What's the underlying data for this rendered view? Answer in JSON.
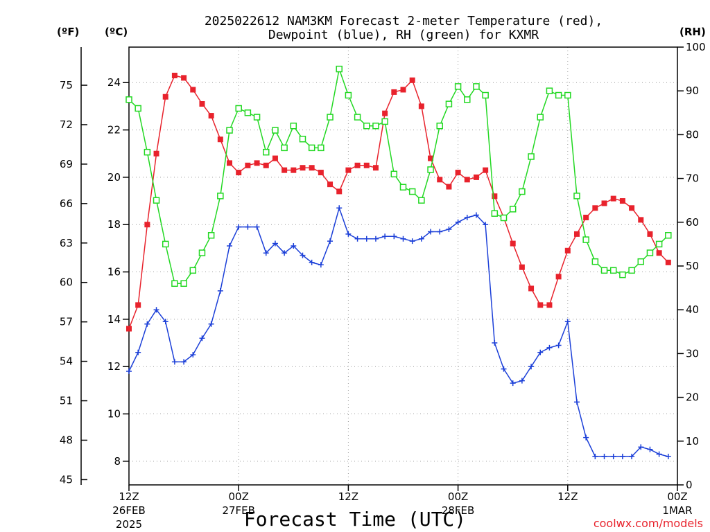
{
  "chart_data": {
    "type": "line",
    "title_line1": "2025022612 NAM3KM Forecast 2-meter Temperature (red),",
    "title_line2": "Dewpoint (blue), RH (green) for KXMR",
    "xlabel": "Forecast Time (UTC)",
    "credit": "coolwx.com/models",
    "units": {
      "fahrenheit": "(ºF)",
      "celsius": "(ºC)",
      "rh": "(RH)"
    },
    "x_hours": {
      "start": 0,
      "end": 60
    },
    "x_ticks": [
      {
        "hour": 0,
        "line1": "12Z",
        "line2": "26FEB",
        "line3": "2025"
      },
      {
        "hour": 12,
        "line1": "00Z",
        "line2": "27FEB",
        "line3": ""
      },
      {
        "hour": 24,
        "line1": "12Z",
        "line2": "",
        "line3": ""
      },
      {
        "hour": 36,
        "line1": "00Z",
        "line2": "28FEB",
        "line3": ""
      },
      {
        "hour": 48,
        "line1": "12Z",
        "line2": "",
        "line3": ""
      },
      {
        "hour": 60,
        "line1": "00Z",
        "line2": "1MAR",
        "line3": ""
      }
    ],
    "celsius_axis": {
      "min": 7.0,
      "max": 25.5,
      "ticks": [
        8,
        10,
        12,
        14,
        16,
        18,
        20,
        22,
        24
      ]
    },
    "fahrenheit_axis": {
      "ticks": [
        45,
        48,
        51,
        54,
        57,
        60,
        63,
        66,
        69,
        72,
        75
      ]
    },
    "rh_axis": {
      "min": 0,
      "max": 100,
      "ticks": [
        0,
        10,
        20,
        30,
        40,
        50,
        60,
        70,
        80,
        90,
        100
      ]
    },
    "grid": true,
    "series": [
      {
        "key": "temperature",
        "axis": "celsius",
        "marker": "filled-square",
        "color": "#e8222c",
        "values": [
          13.6,
          14.6,
          18.0,
          21.0,
          23.4,
          24.3,
          24.2,
          23.7,
          23.1,
          22.6,
          21.6,
          20.6,
          20.2,
          20.5,
          20.6,
          20.5,
          20.8,
          20.3,
          20.3,
          20.4,
          20.4,
          20.2,
          19.7,
          19.4,
          20.3,
          20.5,
          20.5,
          20.4,
          22.7,
          23.6,
          23.7,
          24.1,
          23.0,
          20.8,
          19.9,
          19.6,
          20.2,
          19.9,
          20.0,
          20.3,
          19.2,
          18.3,
          17.2,
          16.2,
          15.3,
          14.6,
          14.6,
          15.8,
          16.9,
          17.6,
          18.3,
          18.7,
          18.9,
          19.1,
          19.0,
          18.7,
          18.2,
          17.6,
          16.8,
          16.4
        ]
      },
      {
        "key": "dewpoint",
        "axis": "celsius",
        "marker": "plus",
        "color": "#1b3fd8",
        "values": [
          11.8,
          12.6,
          13.8,
          14.4,
          13.9,
          12.2,
          12.2,
          12.5,
          13.2,
          13.8,
          15.2,
          17.1,
          17.9,
          17.9,
          17.9,
          16.8,
          17.2,
          16.8,
          17.1,
          16.7,
          16.4,
          16.3,
          17.3,
          18.7,
          17.6,
          17.4,
          17.4,
          17.4,
          17.5,
          17.5,
          17.4,
          17.3,
          17.4,
          17.7,
          17.7,
          17.8,
          18.1,
          18.3,
          18.4,
          18.0,
          13.0,
          11.9,
          11.3,
          11.4,
          12.0,
          12.6,
          12.8,
          12.9,
          13.9,
          10.5,
          9.0,
          8.2,
          8.2,
          8.2,
          8.2,
          8.2,
          8.6,
          8.5,
          8.3,
          8.2
        ]
      },
      {
        "key": "rh",
        "axis": "rh",
        "marker": "open-square",
        "color": "#22d822",
        "values": [
          88,
          86,
          76,
          65,
          55,
          46,
          46,
          49,
          53,
          57,
          66,
          81,
          86,
          85,
          84,
          76,
          81,
          77,
          82,
          79,
          77,
          77,
          84,
          95,
          89,
          84,
          82,
          82,
          83,
          71,
          68,
          67,
          65,
          72,
          82,
          87,
          91,
          88,
          91,
          89,
          62,
          61,
          63,
          67,
          75,
          84,
          90,
          89,
          89,
          66,
          56,
          51,
          49,
          49,
          48,
          49,
          51,
          53,
          55,
          57
        ]
      }
    ]
  }
}
